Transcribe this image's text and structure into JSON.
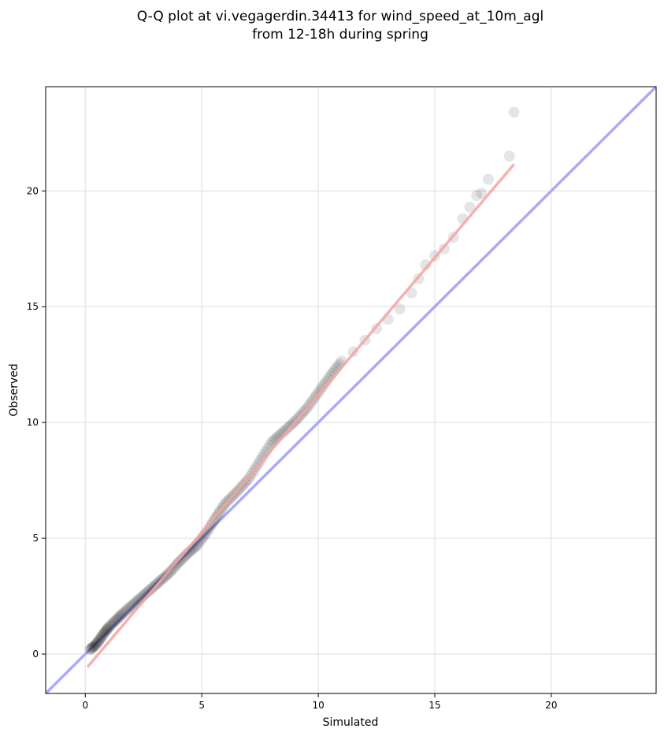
{
  "chart_data": {
    "type": "scatter",
    "title_lines": [
      "Q-Q plot at vi.vegagerdin.34413 for wind_speed_at_10m_agl",
      "from 12-18h during spring"
    ],
    "xlabel": "Simulated",
    "ylabel": "Observed",
    "xlim": [
      -1.7,
      24.5
    ],
    "ylim": [
      -1.7,
      24.5
    ],
    "xticks": [
      "0",
      "5",
      "10",
      "15",
      "20"
    ],
    "yticks": [
      "0",
      "5",
      "10",
      "15",
      "20"
    ],
    "tick_values": [
      0,
      5,
      10,
      15,
      20
    ],
    "grid": true,
    "legend": "none",
    "colors": {
      "points": "#000000",
      "identity_line": "#aaaaf5",
      "fit_line": "#f5a3a3",
      "grid": "#e9e9e9"
    },
    "identity_line": {
      "x": [
        -1.7,
        24.5
      ],
      "y": [
        -1.7,
        24.5
      ]
    },
    "fit_line": {
      "x": [
        0.1,
        18.4
      ],
      "y": [
        -0.55,
        21.15
      ]
    },
    "quantiles": {
      "x": [
        0.2,
        0.4,
        0.6,
        0.8,
        1.0,
        1.3,
        1.6,
        2.0,
        2.4,
        2.8,
        3.2,
        3.6,
        4.0,
        4.4,
        4.8,
        5.2,
        5.6,
        6.0,
        6.5,
        7.0,
        7.5,
        8.0,
        8.5,
        9.0,
        9.5,
        10.0,
        10.5,
        11.0,
        11.5,
        12.0,
        12.5,
        13.0,
        13.5,
        14.0,
        14.3,
        14.6,
        15.0,
        15.4,
        15.8,
        16.2,
        16.5,
        16.8,
        17.0,
        17.3,
        18.2,
        18.4
      ],
      "y": [
        0.2,
        0.35,
        0.6,
        0.9,
        1.15,
        1.45,
        1.75,
        2.1,
        2.45,
        2.8,
        3.15,
        3.5,
        3.95,
        4.35,
        4.7,
        5.25,
        5.9,
        6.5,
        7.0,
        7.55,
        8.35,
        9.15,
        9.6,
        10.05,
        10.6,
        11.3,
        12.0,
        12.65,
        13.05,
        13.55,
        14.05,
        14.45,
        14.9,
        15.6,
        16.2,
        16.8,
        17.2,
        17.5,
        18.0,
        18.8,
        19.3,
        19.8,
        19.9,
        20.5,
        21.5,
        23.4
      ]
    }
  }
}
